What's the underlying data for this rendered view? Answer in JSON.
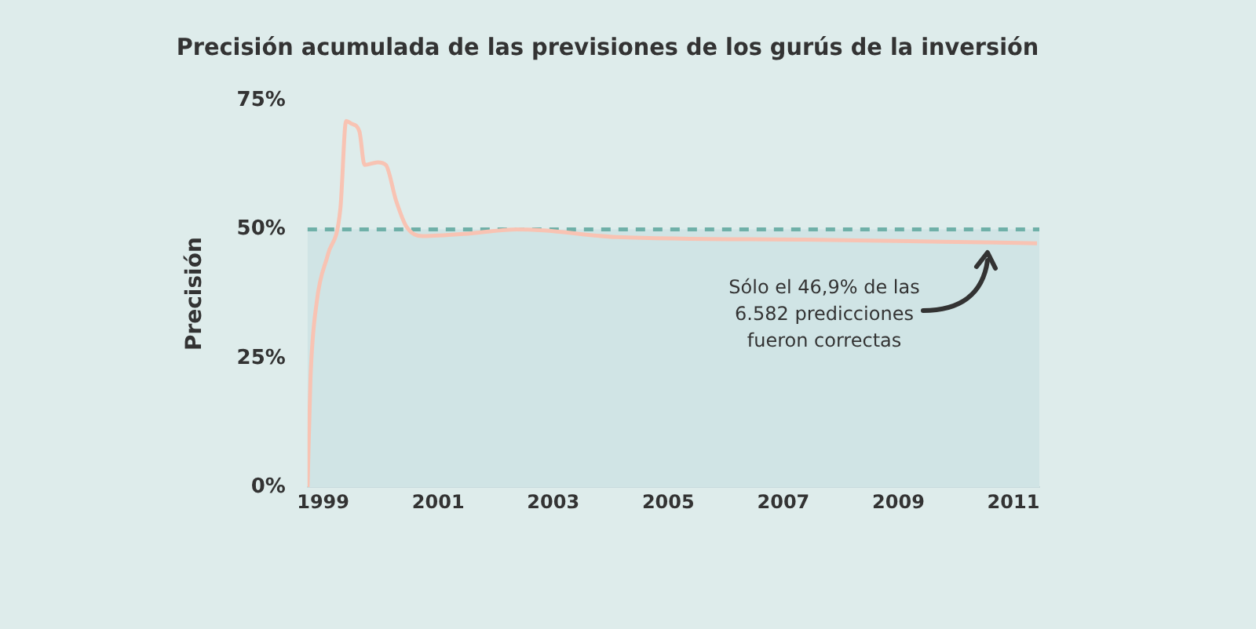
{
  "chart_data": {
    "type": "line",
    "title": "Precisión acumulada de las previsiones de los gurús de la inversión",
    "ylabel": "Precisión",
    "x": [
      1998.73,
      1998.78,
      1998.89,
      1999.08,
      1999.3,
      1999.4,
      1999.49,
      1999.63,
      1999.72,
      1999.95,
      2000.09,
      2000.27,
      2000.45,
      2000.73,
      2001.55,
      2002.37,
      2002.83,
      2004.1,
      2007.38,
      2009.77,
      2011.41
    ],
    "series": [
      {
        "color": "#f8c3b3",
        "values": [
          0,
          21,
          36,
          45,
          54,
          71,
          70.5,
          69,
          62.5,
          63,
          62.5,
          55.5,
          50.5,
          48.7,
          49.2,
          50,
          49.8,
          48.5,
          48,
          47.6,
          47.3
        ]
      }
    ],
    "xlim": [
      1998.73,
      2011.45
    ],
    "xticks": [
      1999,
      2001,
      2003,
      2005,
      2007,
      2009,
      2011
    ],
    "ylim": [
      0,
      75
    ],
    "yticks": [
      {
        "value": 0,
        "label": "0%"
      },
      {
        "value": 25,
        "label": "25%"
      },
      {
        "value": 50,
        "label": "50%"
      },
      {
        "value": 75,
        "label": "75%"
      }
    ],
    "ref_lines": [
      {
        "axis": "y",
        "value": 50,
        "color": "#6fb0a8",
        "line_style": "dashed"
      }
    ],
    "bands": [
      {
        "axis": "y",
        "from": 0,
        "to": 50,
        "color": "#d0e4e5"
      }
    ],
    "annotations": [
      "Sólo el 46,9% de las 6.582 predicciones fueron correctas"
    ],
    "grid": false,
    "legend": false,
    "marker": "none",
    "line_style": "solid"
  }
}
